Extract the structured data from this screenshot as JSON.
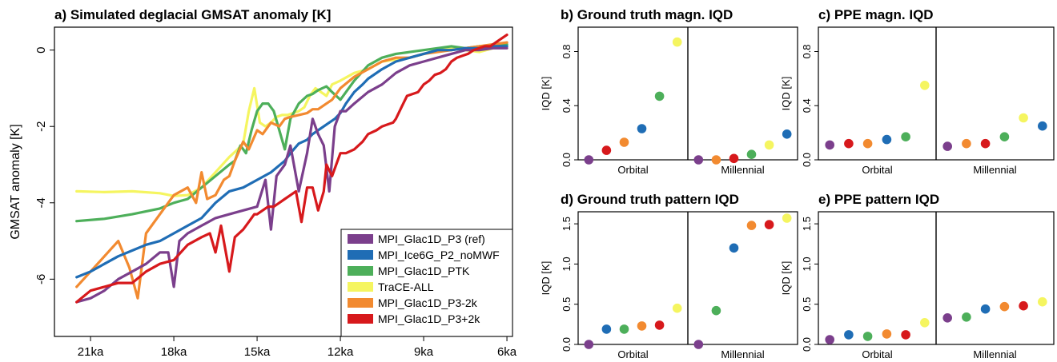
{
  "colors": {
    "purple": "#7B3F8C",
    "blue": "#1F6DB5",
    "green": "#4DAF5A",
    "yellow": "#F5F560",
    "orange": "#F28A30",
    "red": "#D7191C"
  },
  "chart_data": [
    {
      "id": "a",
      "type": "line",
      "title": "a) Simulated deglacial GMSAT anomaly [K]",
      "xlabel": "",
      "ylabel": "GMSAT anomaly [K]",
      "x_unit": "ka",
      "xlim": [
        22.3,
        5.8
      ],
      "ylim": [
        -7.5,
        0.6
      ],
      "x_ticks": [
        21,
        18,
        15,
        12,
        9,
        6
      ],
      "x_tick_labels": [
        "21ka",
        "18ka",
        "15ka",
        "12ka",
        "9ka",
        "6ka"
      ],
      "y_ticks": [
        0,
        -2,
        -4,
        -6
      ],
      "y_tick_labels": [
        "0",
        "-2",
        "-4",
        "-6"
      ],
      "legend_position": "bottom-right",
      "series": [
        {
          "name": "TraCE-ALL",
          "color_key": "yellow",
          "x": [
            21.5,
            20.5,
            19.5,
            18.5,
            18,
            17.5,
            17,
            16.5,
            16,
            15.7,
            15.5,
            15.3,
            15.1,
            14.9,
            14.7,
            14.5,
            14.3,
            14.1,
            13.9,
            13.7,
            13.5,
            13.3,
            13.1,
            12.9,
            12.7,
            12.5,
            12.3,
            12,
            11.5,
            11,
            10.5,
            10,
            9.5,
            9,
            8.5,
            8,
            7.5,
            7,
            6.5,
            6
          ],
          "y": [
            -3.7,
            -3.72,
            -3.7,
            -3.75,
            -3.82,
            -3.8,
            -3.6,
            -3.2,
            -2.8,
            -2.6,
            -2.45,
            -1.6,
            -1.0,
            -1.9,
            -2.0,
            -1.9,
            -1.75,
            -1.7,
            -1.7,
            -1.65,
            -1.6,
            -1.5,
            -1.2,
            -1.0,
            -1.1,
            -1.2,
            -0.9,
            -0.8,
            -0.6,
            -0.5,
            -0.3,
            -0.25,
            -0.2,
            -0.1,
            0.0,
            0.05,
            0.0,
            -0.05,
            0.05,
            0.1
          ]
        },
        {
          "name": "MPI_Glac1D_PTK",
          "color_key": "green",
          "x": [
            21.5,
            20.5,
            19.5,
            18.5,
            18,
            17.5,
            17,
            16.5,
            16,
            15.8,
            15.6,
            15.4,
            15.2,
            15,
            14.8,
            14.6,
            14.4,
            14.2,
            14,
            13.8,
            13.5,
            13.2,
            13,
            12.8,
            12.5,
            12.3,
            12,
            11.5,
            11,
            10.5,
            10,
            9.5,
            9,
            8.5,
            8,
            7.5,
            7,
            6.5,
            6
          ],
          "y": [
            -4.48,
            -4.42,
            -4.3,
            -4.15,
            -4.0,
            -3.9,
            -3.6,
            -3.3,
            -3.0,
            -2.9,
            -2.5,
            -2.7,
            -2.1,
            -1.6,
            -1.4,
            -1.4,
            -1.6,
            -2.1,
            -2.6,
            -1.8,
            -1.4,
            -1.2,
            -1.15,
            -1.05,
            -0.95,
            -1.1,
            -1.3,
            -0.8,
            -0.4,
            -0.2,
            -0.1,
            -0.05,
            0.0,
            0.05,
            0.1,
            0.05,
            0.1,
            0.12,
            0.15
          ]
        },
        {
          "name": "MPI_Glac1D_P3-2k",
          "color_key": "orange",
          "x": [
            21.5,
            21,
            20.5,
            20,
            19.6,
            19.3,
            19,
            18.5,
            18,
            17.5,
            17.2,
            17,
            16.8,
            16.5,
            16.2,
            16,
            15.8,
            15.5,
            15.3,
            15,
            14.8,
            14.5,
            14.2,
            14,
            13.8,
            13.5,
            13.2,
            13,
            12.8,
            12.5,
            12.3,
            12,
            11.5,
            11,
            10.5,
            10,
            9.5,
            9,
            8.5,
            8,
            7.5,
            7,
            6.5,
            6
          ],
          "y": [
            -6.2,
            -5.8,
            -5.4,
            -5.0,
            -5.7,
            -6.5,
            -4.8,
            -4.3,
            -3.8,
            -3.6,
            -4.0,
            -3.2,
            -3.9,
            -3.8,
            -3.4,
            -3.3,
            -2.9,
            -2.4,
            -2.6,
            -2.1,
            -2.2,
            -1.9,
            -2.0,
            -1.8,
            -1.75,
            -1.7,
            -1.65,
            -1.55,
            -1.55,
            -1.4,
            -1.3,
            -1.0,
            -0.7,
            -0.5,
            -0.3,
            -0.2,
            -0.2,
            -0.1,
            -0.05,
            0.0,
            0.05,
            0.1,
            0.15,
            0.2
          ]
        },
        {
          "name": "MPI_Ice6G_P2_noMWF",
          "color_key": "blue",
          "x": [
            21.5,
            21,
            20.5,
            20,
            19.5,
            19,
            18.5,
            18,
            17.5,
            17,
            16.5,
            16,
            15.5,
            15,
            14.5,
            14,
            13.8,
            13.5,
            13.2,
            13,
            12.8,
            12.5,
            12.2,
            12,
            11.8,
            11.5,
            11.2,
            11,
            10.5,
            10,
            9.5,
            9,
            8.5,
            8,
            7.5,
            7,
            6.5,
            6
          ],
          "y": [
            -5.95,
            -5.8,
            -5.6,
            -5.4,
            -5.25,
            -5.1,
            -5.0,
            -4.8,
            -4.6,
            -4.4,
            -4.0,
            -3.7,
            -3.6,
            -3.4,
            -3.2,
            -2.9,
            -2.7,
            -2.45,
            -2.35,
            -2.2,
            -2.1,
            -1.95,
            -1.8,
            -1.65,
            -1.4,
            -1.1,
            -0.9,
            -0.75,
            -0.5,
            -0.3,
            -0.2,
            -0.1,
            0.0,
            0.0,
            0.05,
            0.05,
            0.1,
            0.1
          ]
        },
        {
          "name": "MPI_Glac1D_P3 (ref)",
          "color_key": "purple",
          "x": [
            21.5,
            21,
            20.5,
            20,
            19.5,
            19,
            18.5,
            18.2,
            18,
            17.8,
            17.5,
            17,
            16.5,
            16,
            15.5,
            15,
            14.7,
            14.5,
            14.3,
            14,
            13.8,
            13.5,
            13.2,
            13,
            12.8,
            12.6,
            12.4,
            12.2,
            12,
            11.8,
            11.5,
            11,
            10.5,
            10,
            9.5,
            9,
            8.5,
            8,
            7.5,
            7,
            6.5,
            6
          ],
          "y": [
            -6.6,
            -6.5,
            -6.3,
            -6.0,
            -5.8,
            -5.6,
            -5.3,
            -5.3,
            -6.2,
            -5.0,
            -4.8,
            -4.6,
            -4.4,
            -4.3,
            -4.2,
            -4.1,
            -3.4,
            -4.7,
            -3.3,
            -3.0,
            -2.5,
            -3.7,
            -2.7,
            -1.8,
            -2.2,
            -2.5,
            -3.7,
            -2.0,
            -1.6,
            -1.6,
            -1.4,
            -1.1,
            -0.9,
            -0.6,
            -0.4,
            -0.3,
            -0.2,
            -0.1,
            0.0,
            0.0,
            0.05,
            0.05
          ]
        },
        {
          "name": "MPI_Glac1D_P3+2k",
          "color_key": "red",
          "x": [
            21.5,
            21,
            20.5,
            20,
            19.5,
            19,
            18.5,
            18,
            17.5,
            17,
            16.7,
            16.5,
            16.3,
            16,
            15.8,
            15.5,
            15.3,
            15.1,
            15,
            14.8,
            14.6,
            14.4,
            14.2,
            14,
            13.8,
            13.6,
            13.4,
            13.2,
            13,
            12.8,
            12.6,
            12.5,
            12.3,
            12.1,
            12,
            11.8,
            11.5,
            11.2,
            11,
            10.7,
            10.5,
            10.3,
            10.1,
            10,
            9.8,
            9.6,
            9.4,
            9.2,
            9,
            8.8,
            8.6,
            8.4,
            8.2,
            8,
            7.8,
            7.6,
            7.4,
            7.2,
            7,
            6.8,
            6.6,
            6.4,
            6.2,
            6
          ],
          "y": [
            -6.6,
            -6.3,
            -6.2,
            -6.1,
            -6.1,
            -5.8,
            -5.6,
            -5.5,
            -5.1,
            -4.9,
            -4.8,
            -5.3,
            -4.6,
            -5.8,
            -4.9,
            -4.7,
            -4.5,
            -4.3,
            -4.3,
            -4.2,
            -4.1,
            -4.1,
            -4.0,
            -3.9,
            -3.8,
            -3.7,
            -4.5,
            -3.6,
            -3.6,
            -4.2,
            -3.7,
            -3.0,
            -3.3,
            -2.9,
            -2.7,
            -2.7,
            -2.6,
            -2.4,
            -2.2,
            -2.1,
            -2.0,
            -1.95,
            -1.9,
            -1.8,
            -1.5,
            -1.2,
            -1.15,
            -1.1,
            -0.9,
            -0.8,
            -0.65,
            -0.6,
            -0.5,
            -0.3,
            -0.2,
            -0.15,
            -0.1,
            0.0,
            0.05,
            0.1,
            0.1,
            0.2,
            0.3,
            0.4
          ]
        }
      ],
      "legend_order": [
        "MPI_Glac1D_P3 (ref)",
        "MPI_Ice6G_P2_noMWF",
        "MPI_Glac1D_PTK",
        "TraCE-ALL",
        "MPI_Glac1D_P3-2k",
        "MPI_Glac1D_P3+2k"
      ],
      "legend_colors": [
        "purple",
        "blue",
        "green",
        "yellow",
        "orange",
        "red"
      ]
    },
    {
      "id": "b",
      "type": "scatter",
      "title": "b) Ground truth magn. IQD",
      "ylabel": "IQD [K]",
      "ylim": [
        0,
        0.98
      ],
      "y_ticks": [
        0.0,
        0.4,
        0.8
      ],
      "y_tick_labels": [
        "0.0",
        "0.4",
        "0.8"
      ],
      "groups": [
        "Orbital",
        "Millennial"
      ],
      "point_colors": [
        [
          "purple",
          "red",
          "orange",
          "blue",
          "green",
          "yellow"
        ],
        [
          "purple",
          "orange",
          "red",
          "green",
          "yellow",
          "blue"
        ]
      ],
      "values": [
        [
          0.0,
          0.07,
          0.13,
          0.23,
          0.47,
          0.87
        ],
        [
          0.0,
          0.0,
          0.01,
          0.04,
          0.11,
          0.19
        ]
      ]
    },
    {
      "id": "c",
      "type": "scatter",
      "title": "c) PPE magn. IQD",
      "ylabel": "IQD [K]",
      "ylim": [
        0,
        0.98
      ],
      "y_ticks": [
        0.0,
        0.4,
        0.8
      ],
      "y_tick_labels": [
        "0.0",
        "0.4",
        "0.8"
      ],
      "groups": [
        "Orbital",
        "Millennial"
      ],
      "point_colors": [
        [
          "purple",
          "red",
          "orange",
          "blue",
          "green",
          "yellow"
        ],
        [
          "purple",
          "orange",
          "red",
          "green",
          "yellow",
          "blue"
        ]
      ],
      "values": [
        [
          0.11,
          0.12,
          0.12,
          0.15,
          0.17,
          0.55
        ],
        [
          0.1,
          0.12,
          0.12,
          0.17,
          0.31,
          0.25
        ]
      ]
    },
    {
      "id": "d",
      "type": "scatter",
      "title": "d) Ground truth pattern IQD",
      "ylabel": "IQD [K]",
      "ylim": [
        0,
        1.65
      ],
      "y_ticks": [
        0.0,
        0.5,
        1.0,
        1.5
      ],
      "y_tick_labels": [
        "0.0",
        "0.5",
        "1.0",
        "1.5"
      ],
      "groups": [
        "Orbital",
        "Millennial"
      ],
      "point_colors": [
        [
          "purple",
          "blue",
          "green",
          "orange",
          "red",
          "yellow"
        ],
        [
          "purple",
          "green",
          "blue",
          "orange",
          "red",
          "yellow"
        ]
      ],
      "values": [
        [
          0.0,
          0.19,
          0.19,
          0.23,
          0.24,
          0.45
        ],
        [
          0.0,
          0.42,
          1.2,
          1.48,
          1.49,
          1.57
        ]
      ]
    },
    {
      "id": "e",
      "type": "scatter",
      "title": "e) PPE pattern IQD",
      "ylabel": "IQD [K]",
      "ylim": [
        0,
        1.65
      ],
      "y_ticks": [
        0.0,
        0.5,
        1.0,
        1.5
      ],
      "y_tick_labels": [
        "0.0",
        "0.5",
        "1.0",
        "1.5"
      ],
      "groups": [
        "Orbital",
        "Millennial"
      ],
      "point_colors": [
        [
          "purple",
          "blue",
          "green",
          "orange",
          "red",
          "yellow"
        ],
        [
          "purple",
          "green",
          "blue",
          "orange",
          "red",
          "yellow"
        ]
      ],
      "values": [
        [
          0.06,
          0.12,
          0.1,
          0.13,
          0.12,
          0.27
        ],
        [
          0.33,
          0.34,
          0.44,
          0.47,
          0.48,
          0.53
        ]
      ]
    }
  ]
}
